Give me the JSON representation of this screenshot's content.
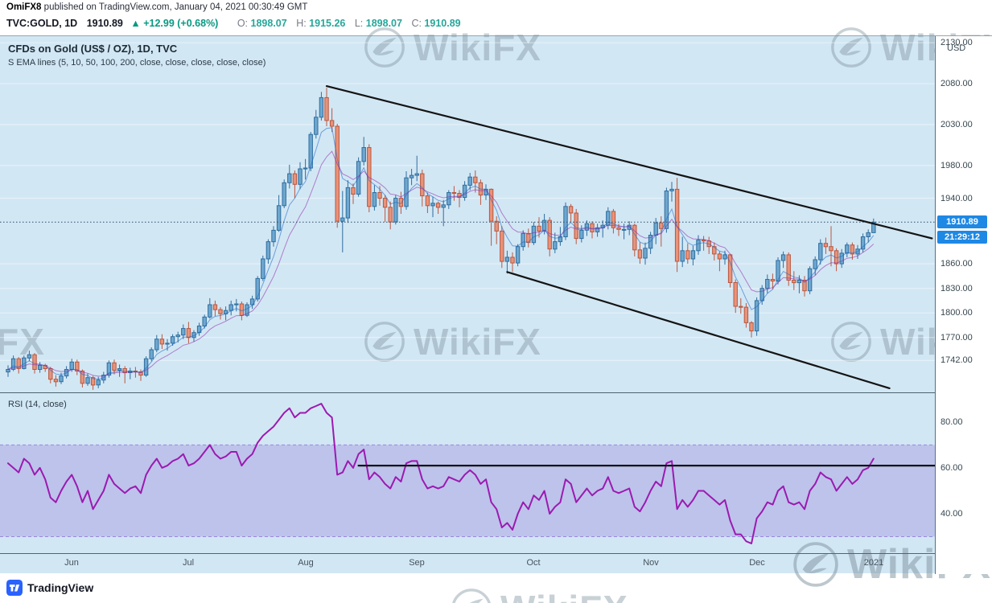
{
  "header": {
    "author": "OmiFX8",
    "published": "published on TradingView.com, January 04, 2021 00:30:49 GMT",
    "symbol": "TVC:GOLD, 1D",
    "last_price": "1910.89",
    "up_arrow": "▲",
    "change": "+12.99 (+0.68%)",
    "ohlc": [
      {
        "label": "O:",
        "value": "1898.07"
      },
      {
        "label": "H:",
        "value": "1915.26"
      },
      {
        "label": "L:",
        "value": "1898.07"
      },
      {
        "label": "C:",
        "value": "1910.89"
      }
    ]
  },
  "chart": {
    "title": "CFDs on Gold (US$ / OZ), 1D, TVC",
    "subtitle": "S EMA lines (5, 10, 50, 100, 200, close, close, close, close, close)",
    "rsi_label": "RSI (14, close)",
    "currency_label": "USD",
    "price_badge": "1910.89",
    "countdown_badge": "21:29:12"
  },
  "watermark": {
    "text": "WikiFX"
  },
  "footer": {
    "brand": "TradingView"
  },
  "chart_data": {
    "type": "candlestick",
    "symbol": "TVC:GOLD",
    "interval": "1D",
    "title": "CFDs on Gold (US$ / OZ), 1D, TVC",
    "last_price": 1910.89,
    "price_range": {
      "min": 1703,
      "max": 2138
    },
    "price_axis_ticks": [
      2130,
      2080,
      2030,
      1980,
      1940,
      1860,
      1830,
      1800,
      1770,
      1742
    ],
    "x_labels": [
      {
        "label": "Jun",
        "index": 12
      },
      {
        "label": "Jul",
        "index": 34
      },
      {
        "label": "Aug",
        "index": 56
      },
      {
        "label": "Sep",
        "index": 77
      },
      {
        "label": "Oct",
        "index": 99
      },
      {
        "label": "Nov",
        "index": 121
      },
      {
        "label": "Dec",
        "index": 141
      },
      {
        "label": "2021",
        "index": 163
      }
    ],
    "ema_periods": [
      5,
      10
    ],
    "trendlines": [
      {
        "name": "upper-channel",
        "from": [
          60,
          2077
        ],
        "to": [
          174,
          1891
        ]
      },
      {
        "name": "lower-channel",
        "from": [
          94,
          1850
        ],
        "to": [
          166,
          1708
        ]
      }
    ],
    "candles": [
      [
        1728,
        1736,
        1722,
        1731
      ],
      [
        1731,
        1748,
        1729,
        1744
      ],
      [
        1744,
        1746,
        1726,
        1732
      ],
      [
        1732,
        1748,
        1731,
        1745
      ],
      [
        1745,
        1754,
        1741,
        1749
      ],
      [
        1749,
        1751,
        1726,
        1731
      ],
      [
        1731,
        1740,
        1727,
        1736
      ],
      [
        1736,
        1738,
        1728,
        1732
      ],
      [
        1732,
        1734,
        1714,
        1719
      ],
      [
        1719,
        1724,
        1710,
        1716
      ],
      [
        1716,
        1727,
        1713,
        1723
      ],
      [
        1723,
        1735,
        1720,
        1731
      ],
      [
        1731,
        1744,
        1728,
        1740
      ],
      [
        1740,
        1743,
        1724,
        1729
      ],
      [
        1729,
        1731,
        1709,
        1714
      ],
      [
        1714,
        1726,
        1711,
        1721
      ],
      [
        1721,
        1723,
        1706,
        1712
      ],
      [
        1712,
        1722,
        1708,
        1718
      ],
      [
        1718,
        1728,
        1714,
        1724
      ],
      [
        1724,
        1742,
        1721,
        1739
      ],
      [
        1739,
        1743,
        1725,
        1730
      ],
      [
        1730,
        1737,
        1722,
        1732
      ],
      [
        1732,
        1735,
        1714,
        1727
      ],
      [
        1727,
        1733,
        1719,
        1729
      ],
      [
        1729,
        1734,
        1721,
        1728
      ],
      [
        1728,
        1731,
        1717,
        1724
      ],
      [
        1724,
        1747,
        1722,
        1744
      ],
      [
        1744,
        1758,
        1741,
        1755
      ],
      [
        1755,
        1773,
        1752,
        1768
      ],
      [
        1768,
        1774,
        1756,
        1762
      ],
      [
        1762,
        1768,
        1754,
        1763
      ],
      [
        1763,
        1774,
        1760,
        1771
      ],
      [
        1771,
        1777,
        1764,
        1773
      ],
      [
        1773,
        1786,
        1768,
        1781
      ],
      [
        1781,
        1789,
        1763,
        1770
      ],
      [
        1770,
        1779,
        1765,
        1776
      ],
      [
        1776,
        1788,
        1772,
        1784
      ],
      [
        1784,
        1798,
        1781,
        1795
      ],
      [
        1795,
        1818,
        1793,
        1810
      ],
      [
        1810,
        1815,
        1796,
        1804
      ],
      [
        1804,
        1807,
        1792,
        1799
      ],
      [
        1799,
        1808,
        1791,
        1803
      ],
      [
        1803,
        1815,
        1797,
        1810
      ],
      [
        1810,
        1817,
        1802,
        1811
      ],
      [
        1811,
        1814,
        1791,
        1797
      ],
      [
        1797,
        1813,
        1795,
        1810
      ],
      [
        1810,
        1821,
        1805,
        1817
      ],
      [
        1817,
        1845,
        1814,
        1842
      ],
      [
        1842,
        1870,
        1839,
        1866
      ],
      [
        1866,
        1890,
        1860,
        1887
      ],
      [
        1887,
        1906,
        1881,
        1901
      ],
      [
        1901,
        1944,
        1899,
        1931
      ],
      [
        1931,
        1963,
        1928,
        1959
      ],
      [
        1959,
        1981,
        1952,
        1970
      ],
      [
        1970,
        1974,
        1940,
        1957
      ],
      [
        1957,
        1984,
        1951,
        1976
      ],
      [
        1976,
        1988,
        1963,
        1977
      ],
      [
        1977,
        2021,
        1973,
        2018
      ],
      [
        2018,
        2048,
        2013,
        2039
      ],
      [
        2039,
        2070,
        2035,
        2063
      ],
      [
        2063,
        2075,
        2028,
        2035
      ],
      [
        2035,
        2050,
        2021,
        2028
      ],
      [
        2028,
        2031,
        1904,
        1912
      ],
      [
        1912,
        1949,
        1874,
        1916
      ],
      [
        1916,
        1962,
        1910,
        1953
      ],
      [
        1953,
        1958,
        1933,
        1945
      ],
      [
        1945,
        1990,
        1942,
        1985
      ],
      [
        1985,
        2015,
        1980,
        2002
      ],
      [
        2002,
        2006,
        1923,
        1930
      ],
      [
        1930,
        1956,
        1925,
        1947
      ],
      [
        1947,
        1955,
        1931,
        1940
      ],
      [
        1940,
        1944,
        1911,
        1929
      ],
      [
        1929,
        1936,
        1902,
        1911
      ],
      [
        1911,
        1944,
        1908,
        1940
      ],
      [
        1940,
        1948,
        1921,
        1930
      ],
      [
        1930,
        1973,
        1926,
        1965
      ],
      [
        1965,
        1976,
        1956,
        1968
      ],
      [
        1968,
        1992,
        1961,
        1970
      ],
      [
        1970,
        1975,
        1930,
        1943
      ],
      [
        1943,
        1947,
        1922,
        1931
      ],
      [
        1931,
        1942,
        1917,
        1934
      ],
      [
        1934,
        1936,
        1921,
        1929
      ],
      [
        1929,
        1938,
        1906,
        1932
      ],
      [
        1932,
        1950,
        1927,
        1947
      ],
      [
        1947,
        1955,
        1937,
        1946
      ],
      [
        1946,
        1950,
        1929,
        1941
      ],
      [
        1941,
        1961,
        1937,
        1956
      ],
      [
        1956,
        1971,
        1950,
        1966
      ],
      [
        1966,
        1974,
        1947,
        1959
      ],
      [
        1959,
        1963,
        1932,
        1944
      ],
      [
        1944,
        1957,
        1938,
        1951
      ],
      [
        1951,
        1952,
        1882,
        1912
      ],
      [
        1912,
        1918,
        1884,
        1900
      ],
      [
        1900,
        1906,
        1855,
        1863
      ],
      [
        1863,
        1876,
        1848,
        1868
      ],
      [
        1868,
        1874,
        1850,
        1861
      ],
      [
        1861,
        1884,
        1857,
        1881
      ],
      [
        1881,
        1901,
        1876,
        1897
      ],
      [
        1897,
        1903,
        1880,
        1886
      ],
      [
        1886,
        1911,
        1883,
        1906
      ],
      [
        1906,
        1917,
        1892,
        1900
      ],
      [
        1900,
        1921,
        1896,
        1913
      ],
      [
        1913,
        1917,
        1869,
        1878
      ],
      [
        1878,
        1898,
        1873,
        1887
      ],
      [
        1887,
        1905,
        1882,
        1893
      ],
      [
        1893,
        1935,
        1889,
        1930
      ],
      [
        1930,
        1933,
        1911,
        1922
      ],
      [
        1922,
        1927,
        1884,
        1891
      ],
      [
        1891,
        1907,
        1886,
        1901
      ],
      [
        1901,
        1913,
        1894,
        1909
      ],
      [
        1909,
        1912,
        1891,
        1899
      ],
      [
        1899,
        1909,
        1893,
        1904
      ],
      [
        1904,
        1913,
        1892,
        1907
      ],
      [
        1907,
        1929,
        1902,
        1924
      ],
      [
        1924,
        1927,
        1897,
        1904
      ],
      [
        1904,
        1909,
        1894,
        1902
      ],
      [
        1902,
        1909,
        1890,
        1902
      ],
      [
        1902,
        1912,
        1895,
        1907
      ],
      [
        1907,
        1909,
        1869,
        1877
      ],
      [
        1877,
        1886,
        1860,
        1867
      ],
      [
        1867,
        1886,
        1859,
        1879
      ],
      [
        1879,
        1899,
        1872,
        1895
      ],
      [
        1895,
        1916,
        1884,
        1910
      ],
      [
        1910,
        1918,
        1881,
        1903
      ],
      [
        1903,
        1953,
        1898,
        1949
      ],
      [
        1949,
        1960,
        1936,
        1951
      ],
      [
        1951,
        1965,
        1850,
        1863
      ],
      [
        1863,
        1893,
        1856,
        1876
      ],
      [
        1876,
        1885,
        1860,
        1866
      ],
      [
        1866,
        1882,
        1858,
        1876
      ],
      [
        1876,
        1895,
        1871,
        1889
      ],
      [
        1889,
        1894,
        1876,
        1888
      ],
      [
        1888,
        1893,
        1872,
        1881
      ],
      [
        1881,
        1886,
        1864,
        1872
      ],
      [
        1872,
        1875,
        1851,
        1866
      ],
      [
        1866,
        1876,
        1859,
        1871
      ],
      [
        1871,
        1872,
        1831,
        1837
      ],
      [
        1837,
        1841,
        1800,
        1808
      ],
      [
        1808,
        1818,
        1799,
        1807
      ],
      [
        1807,
        1812,
        1782,
        1788
      ],
      [
        1788,
        1790,
        1770,
        1778
      ],
      [
        1778,
        1819,
        1772,
        1815
      ],
      [
        1815,
        1834,
        1810,
        1830
      ],
      [
        1830,
        1847,
        1824,
        1841
      ],
      [
        1841,
        1848,
        1829,
        1839
      ],
      [
        1839,
        1868,
        1835,
        1864
      ],
      [
        1864,
        1875,
        1855,
        1871
      ],
      [
        1871,
        1874,
        1833,
        1840
      ],
      [
        1840,
        1851,
        1828,
        1837
      ],
      [
        1837,
        1846,
        1824,
        1840
      ],
      [
        1840,
        1845,
        1820,
        1827
      ],
      [
        1827,
        1857,
        1823,
        1854
      ],
      [
        1854,
        1869,
        1846,
        1865
      ],
      [
        1865,
        1890,
        1859,
        1885
      ],
      [
        1885,
        1892,
        1872,
        1881
      ],
      [
        1881,
        1906,
        1857,
        1876
      ],
      [
        1876,
        1879,
        1851,
        1860
      ],
      [
        1860,
        1878,
        1855,
        1873
      ],
      [
        1873,
        1886,
        1868,
        1883
      ],
      [
        1883,
        1886,
        1865,
        1872
      ],
      [
        1872,
        1883,
        1866,
        1878
      ],
      [
        1878,
        1897,
        1874,
        1893
      ],
      [
        1893,
        1902,
        1886,
        1898
      ],
      [
        1898.07,
        1915.26,
        1898.07,
        1910.89
      ]
    ],
    "rsi": {
      "period": 14,
      "source": "close",
      "range": {
        "min": 22.8,
        "max": 92.6
      },
      "ticks": [
        80,
        60,
        40
      ],
      "band": [
        30,
        70
      ],
      "resistance_line": {
        "from_index": 66,
        "to_index": 175,
        "value": 61
      },
      "values": [
        62,
        60,
        58,
        64,
        62,
        57,
        60,
        55,
        47,
        45,
        50,
        54,
        57,
        52,
        45,
        50,
        42,
        46,
        50,
        57,
        53,
        51,
        49,
        51,
        52,
        49,
        57,
        61,
        64,
        60,
        61,
        63,
        64,
        66,
        61,
        62,
        64,
        67,
        70,
        66,
        64,
        65,
        67,
        67,
        61,
        64,
        66,
        71,
        74,
        76,
        78,
        81,
        84,
        86,
        82,
        84,
        84,
        86,
        87,
        88,
        84,
        82,
        57,
        58,
        63,
        60,
        66,
        68,
        55,
        58,
        56,
        53,
        51,
        56,
        54,
        62,
        63,
        63,
        55,
        51,
        52,
        51,
        52,
        56,
        55,
        54,
        57,
        59,
        57,
        53,
        55,
        45,
        42,
        34,
        36,
        33,
        40,
        45,
        42,
        48,
        46,
        50,
        40,
        43,
        45,
        55,
        53,
        45,
        48,
        51,
        48,
        50,
        51,
        56,
        50,
        49,
        50,
        51,
        43,
        41,
        45,
        50,
        54,
        52,
        62,
        63,
        42,
        46,
        43,
        46,
        50,
        50,
        48,
        46,
        44,
        46,
        37,
        31,
        31,
        28,
        27,
        38,
        41,
        45,
        44,
        50,
        52,
        45,
        44,
        45,
        42,
        50,
        53,
        58,
        56,
        55,
        50,
        53,
        56,
        53,
        55,
        59,
        60,
        64
      ]
    },
    "colors": {
      "background": "#d2e7f4",
      "up": "#6ea7cf",
      "up_border": "#2f6e9f",
      "down": "#e8937a",
      "down_border": "#b9573f",
      "trendline": "#141414",
      "last_price_line": "#2a4a66",
      "rsi_line": "#9c1ab1",
      "rsi_band_fill": "rgba(116,70,205,0.22)",
      "rsi_band_edge": "rgba(116,70,205,0.55)",
      "badge": "#1e88e5",
      "up_text": "#089981",
      "ohlc_value": "#26a69a",
      "ema5": "#1a63c9",
      "ema10": "#8e24aa",
      "watermark": "#7e929e"
    }
  }
}
